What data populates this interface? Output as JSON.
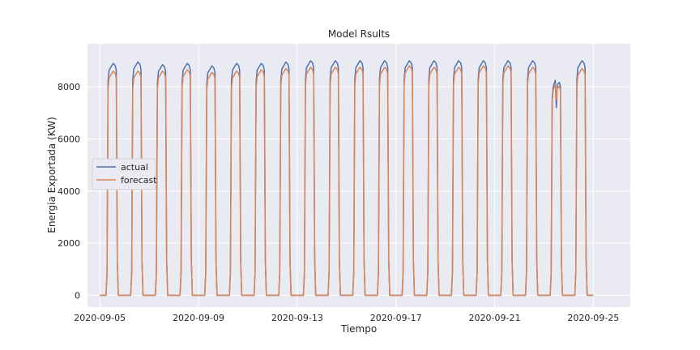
{
  "chart_data": {
    "type": "line",
    "title": "Model Rsults",
    "xlabel": "Tiempo",
    "ylabel": "Energia Exportada (KW)",
    "xlim": [
      "2020-09-04 12:00",
      "2020-09-26 12:00"
    ],
    "ylim": [
      -450,
      9650
    ],
    "x_ticks": [
      "2020-09-05",
      "2020-09-09",
      "2020-09-13",
      "2020-09-17",
      "2020-09-21",
      "2020-09-25"
    ],
    "y_ticks": [
      0,
      2000,
      4000,
      6000,
      8000
    ],
    "grid": true,
    "legend": {
      "placement": "center-left",
      "entries": [
        "actual",
        "forecast"
      ]
    },
    "colors": {
      "actual": "#4c72b0",
      "forecast": "#dd8452",
      "background": "#eaeaf2",
      "grid": "#ffffff"
    },
    "daily_profile": {
      "description_hours": [
        0,
        6,
        7,
        8,
        9,
        10,
        16,
        17,
        18,
        19,
        24
      ],
      "note": "per-day shape built from peaks below"
    },
    "series": [
      {
        "name": "actual",
        "peaks": [
          8900,
          8950,
          8850,
          8900,
          8800,
          8900,
          8900,
          8950,
          9000,
          9000,
          9000,
          9000,
          9000,
          9000,
          9000,
          9000,
          9000,
          9000,
          8250,
          9000
        ],
        "dips": [
          0,
          0,
          0,
          0,
          0,
          0,
          0,
          0,
          0,
          0,
          0,
          0,
          0,
          0,
          0,
          0,
          0,
          0,
          7200,
          0
        ]
      },
      {
        "name": "forecast",
        "peaks": [
          8600,
          8600,
          8600,
          8650,
          8550,
          8600,
          8650,
          8700,
          8750,
          8750,
          8750,
          8750,
          8800,
          8750,
          8750,
          8800,
          8800,
          8750,
          8100,
          8700
        ],
        "dips": [
          0,
          0,
          0,
          0,
          0,
          0,
          0,
          0,
          0,
          0,
          0,
          0,
          0,
          0,
          0,
          0,
          0,
          0,
          7500,
          0
        ]
      }
    ],
    "days": [
      "2020-09-05",
      "2020-09-06",
      "2020-09-07",
      "2020-09-08",
      "2020-09-09",
      "2020-09-10",
      "2020-09-11",
      "2020-09-12",
      "2020-09-13",
      "2020-09-14",
      "2020-09-15",
      "2020-09-16",
      "2020-09-17",
      "2020-09-18",
      "2020-09-19",
      "2020-09-20",
      "2020-09-21",
      "2020-09-22",
      "2020-09-23",
      "2020-09-24"
    ]
  }
}
